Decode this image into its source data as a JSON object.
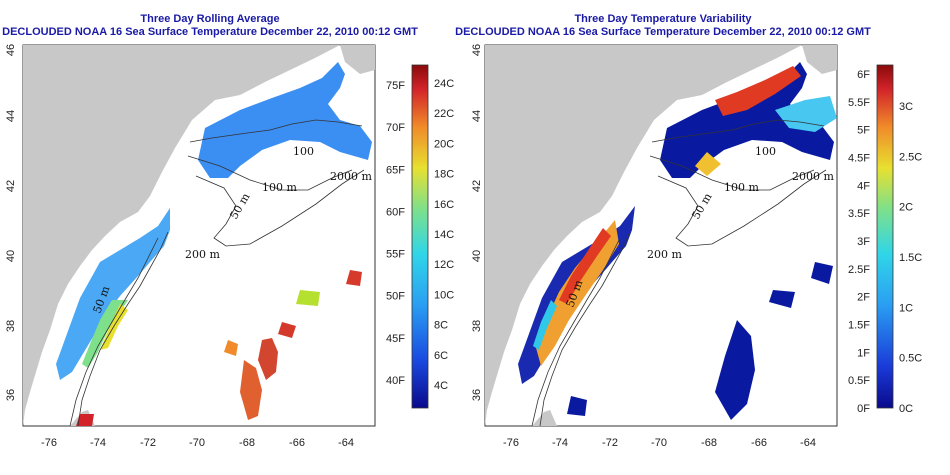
{
  "left_panel": {
    "title_line1": "Three Day Rolling Average",
    "title_line2": "DECLOUDED NOAA 16 Sea Surface Temperature December 22, 2010 00:12 GMT",
    "colorbar_f": [
      "75F",
      "70F",
      "65F",
      "60F",
      "55F",
      "50F",
      "45F",
      "40F"
    ],
    "colorbar_c": [
      "24C",
      "22C",
      "20C",
      "18C",
      "16C",
      "14C",
      "12C",
      "10C",
      "8C",
      "6C",
      "4C"
    ]
  },
  "right_panel": {
    "title_line1": "Three Day Temperature Variability",
    "title_line2": "DECLOUDED NOAA 16 Sea Surface Temperature December 22, 2010 00:12 GMT",
    "colorbar_f": [
      "6F",
      "5.5F",
      "5F",
      "4.5F",
      "4F",
      "3.5F",
      "3F",
      "2.5F",
      "2F",
      "1.5F",
      "1F",
      "0.5F",
      "0F"
    ],
    "colorbar_c": [
      "3C",
      "2.5C",
      "2C",
      "1.5C",
      "1C",
      "0.5C",
      "0C"
    ]
  },
  "axes": {
    "x_ticks": [
      "-76",
      "-74",
      "-72",
      "-70",
      "-68",
      "-66",
      "-64"
    ],
    "y_ticks": [
      "36",
      "38",
      "40",
      "42",
      "44",
      "46"
    ]
  },
  "contour_labels": {
    "l100": "100",
    "l100m": "100 m",
    "l2000m": "2000 m",
    "l200m": "200 m",
    "l50m_a": "50 m",
    "l50m_b": "50 m",
    "l50m_c": "50 m"
  },
  "colors": {
    "land": "#c8c8c8",
    "title": "#1a1aa6"
  }
}
